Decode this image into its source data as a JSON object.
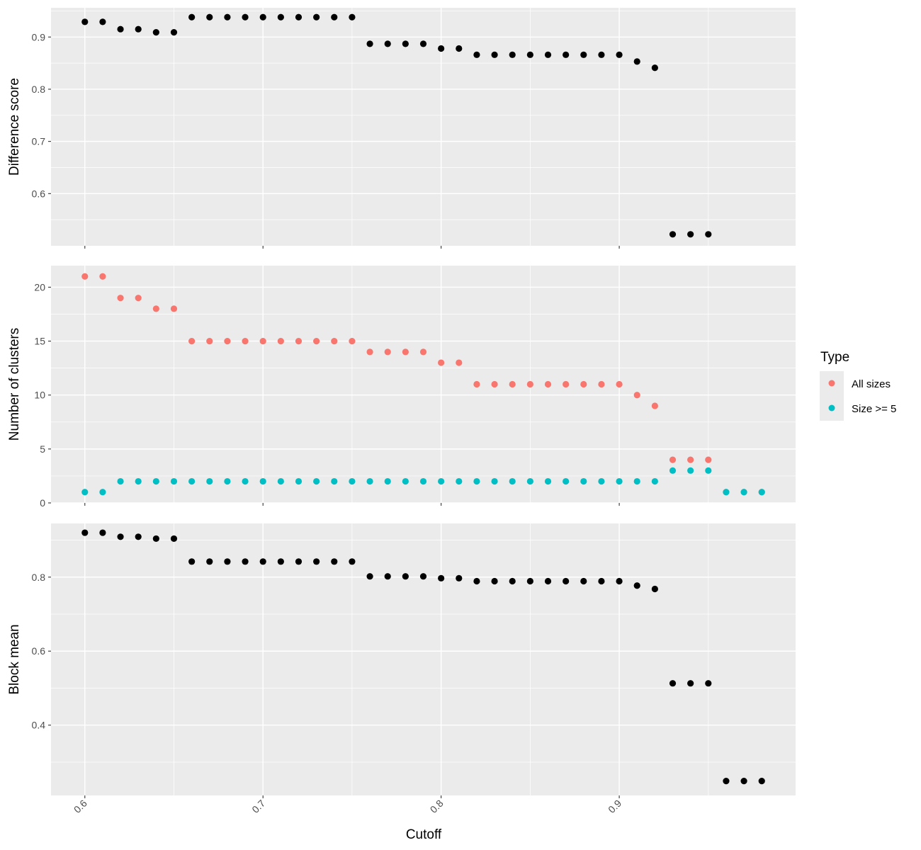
{
  "chart_data": {
    "type": "scatter",
    "xlabel": "Cutoff",
    "x_ticks": [
      "0.6",
      "0.7",
      "0.8",
      "0.9"
    ],
    "x_tick_values": [
      0.6,
      0.7,
      0.8,
      0.9
    ],
    "xlim": [
      0.581,
      0.999
    ],
    "colors": {
      "panel_bg": "#EBEBEB",
      "grid": "#FFFFFF",
      "point_default": "#000000",
      "all_sizes": "#F8766D",
      "size_ge_5": "#00BFC4"
    },
    "legend": {
      "title": "Type",
      "placement": "right",
      "entries": [
        {
          "label": "All sizes",
          "color": "#F8766D"
        },
        {
          "label": "Size >= 5",
          "color": "#00BFC4"
        }
      ]
    },
    "panels": [
      {
        "ylabel": "Difference score",
        "ylim": [
          0.5,
          0.956
        ],
        "y_ticks": [
          "0.6",
          "0.7",
          "0.8",
          "0.9"
        ],
        "y_tick_values": [
          0.6,
          0.7,
          0.8,
          0.9
        ],
        "series": [
          {
            "x": [
              0.6,
              0.61,
              0.62,
              0.63,
              0.64,
              0.65,
              0.66,
              0.67,
              0.68,
              0.69,
              0.7,
              0.71,
              0.72,
              0.73,
              0.74,
              0.75,
              0.76,
              0.77,
              0.78,
              0.79,
              0.8,
              0.81,
              0.82,
              0.83,
              0.84,
              0.85,
              0.86,
              0.87,
              0.88,
              0.89,
              0.9,
              0.91,
              0.92,
              0.93,
              0.94,
              0.95
            ],
            "values": [
              0.929,
              0.929,
              0.915,
              0.915,
              0.909,
              0.909,
              0.938,
              0.938,
              0.938,
              0.938,
              0.938,
              0.938,
              0.938,
              0.938,
              0.938,
              0.938,
              0.887,
              0.887,
              0.887,
              0.887,
              0.878,
              0.878,
              0.866,
              0.866,
              0.866,
              0.866,
              0.866,
              0.866,
              0.866,
              0.866,
              0.866,
              0.853,
              0.841,
              0.522,
              0.522,
              0.522
            ]
          }
        ]
      },
      {
        "ylabel": "Number of clusters",
        "ylim": [
          0,
          22
        ],
        "y_ticks": [
          "0",
          "5",
          "10",
          "15",
          "20"
        ],
        "y_tick_values": [
          0,
          5,
          10,
          15,
          20
        ],
        "series": [
          {
            "name": "All sizes",
            "x": [
              0.6,
              0.61,
              0.62,
              0.63,
              0.64,
              0.65,
              0.66,
              0.67,
              0.68,
              0.69,
              0.7,
              0.71,
              0.72,
              0.73,
              0.74,
              0.75,
              0.76,
              0.77,
              0.78,
              0.79,
              0.8,
              0.81,
              0.82,
              0.83,
              0.84,
              0.85,
              0.86,
              0.87,
              0.88,
              0.89,
              0.9,
              0.91,
              0.92,
              0.93,
              0.94,
              0.95,
              0.96,
              0.97,
              0.98
            ],
            "values": [
              21,
              21,
              19,
              19,
              18,
              18,
              15,
              15,
              15,
              15,
              15,
              15,
              15,
              15,
              15,
              15,
              14,
              14,
              14,
              14,
              13,
              13,
              11,
              11,
              11,
              11,
              11,
              11,
              11,
              11,
              11,
              10,
              9,
              4,
              4,
              4,
              1,
              1,
              1
            ]
          },
          {
            "name": "Size >= 5",
            "x": [
              0.6,
              0.61,
              0.62,
              0.63,
              0.64,
              0.65,
              0.66,
              0.67,
              0.68,
              0.69,
              0.7,
              0.71,
              0.72,
              0.73,
              0.74,
              0.75,
              0.76,
              0.77,
              0.78,
              0.79,
              0.8,
              0.81,
              0.82,
              0.83,
              0.84,
              0.85,
              0.86,
              0.87,
              0.88,
              0.89,
              0.9,
              0.91,
              0.92,
              0.93,
              0.94,
              0.95,
              0.96,
              0.97,
              0.98
            ],
            "values": [
              1,
              1,
              2,
              2,
              2,
              2,
              2,
              2,
              2,
              2,
              2,
              2,
              2,
              2,
              2,
              2,
              2,
              2,
              2,
              2,
              2,
              2,
              2,
              2,
              2,
              2,
              2,
              2,
              2,
              2,
              2,
              2,
              2,
              3,
              3,
              3,
              1,
              1,
              1
            ]
          }
        ]
      },
      {
        "ylabel": "Block mean",
        "ylim": [
          0.21,
          0.945
        ],
        "y_ticks": [
          "0.4",
          "0.6",
          "0.8"
        ],
        "y_tick_values": [
          0.4,
          0.6,
          0.8
        ],
        "series": [
          {
            "x": [
              0.6,
              0.61,
              0.62,
              0.63,
              0.64,
              0.65,
              0.66,
              0.67,
              0.68,
              0.69,
              0.7,
              0.71,
              0.72,
              0.73,
              0.74,
              0.75,
              0.76,
              0.77,
              0.78,
              0.79,
              0.8,
              0.81,
              0.82,
              0.83,
              0.84,
              0.85,
              0.86,
              0.87,
              0.88,
              0.89,
              0.9,
              0.91,
              0.92,
              0.93,
              0.94,
              0.95,
              0.96,
              0.97,
              0.98
            ],
            "values": [
              0.92,
              0.92,
              0.909,
              0.909,
              0.904,
              0.904,
              0.842,
              0.842,
              0.842,
              0.842,
              0.842,
              0.842,
              0.842,
              0.842,
              0.842,
              0.842,
              0.802,
              0.802,
              0.802,
              0.802,
              0.797,
              0.797,
              0.789,
              0.789,
              0.789,
              0.789,
              0.789,
              0.789,
              0.789,
              0.789,
              0.789,
              0.777,
              0.768,
              0.513,
              0.513,
              0.513,
              0.249,
              0.249,
              0.249
            ]
          }
        ]
      }
    ]
  }
}
